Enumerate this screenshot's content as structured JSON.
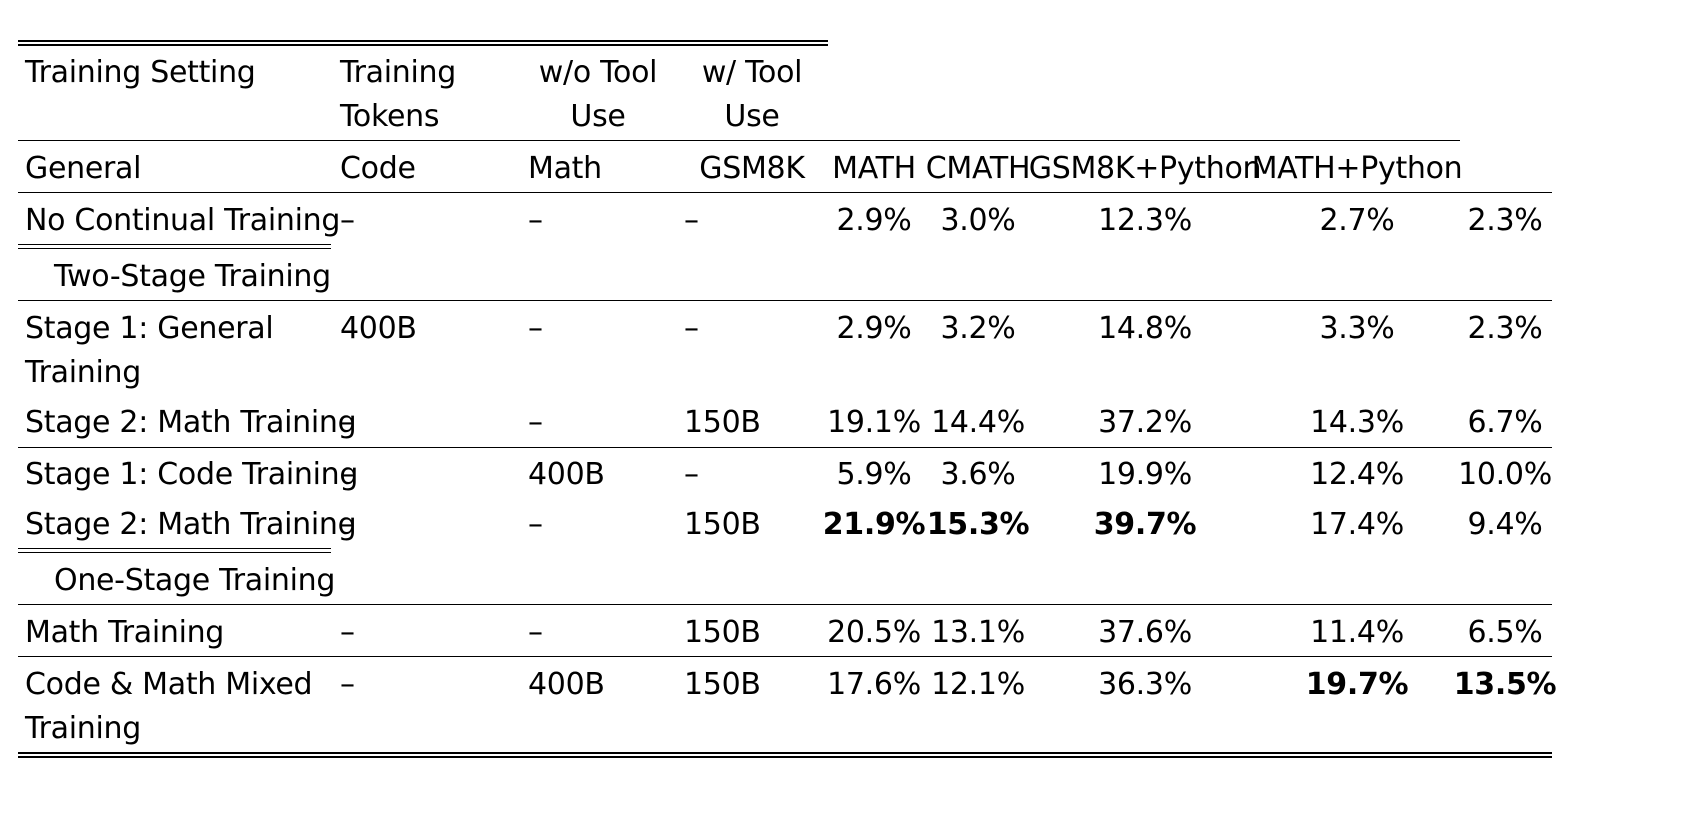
{
  "header": {
    "training_setting": "Training Setting",
    "training_tokens_line1": "Training",
    "training_tokens_line2": "Tokens",
    "wo_tool_line1": "w/o Tool",
    "wo_tool_line2": "Use",
    "w_tool_line1": "w/ Tool",
    "w_tool_line2": "Use",
    "general": "General",
    "code": "Code",
    "math": "Math",
    "gsm8k": "GSM8K",
    "math_bench": "MATH",
    "cmath": "CMATH",
    "gsm8k_python": "GSM8K+Python",
    "math_python": "MATH+Python"
  },
  "sections": {
    "two_stage": "Two-Stage Training",
    "one_stage": "One-Stage Training"
  },
  "rows": [
    {
      "setting": [
        "No Continual Training"
      ],
      "general": "–",
      "code": "–",
      "math": "–",
      "gsm8k": "2.9%",
      "math_bench": "3.0%",
      "cmath": "12.3%",
      "gsm8k_python": "2.7%",
      "math_python": "2.3%"
    },
    {
      "setting": [
        "Stage 1: General",
        "Training"
      ],
      "general": "400B",
      "code": "–",
      "math": "–",
      "gsm8k": "2.9%",
      "math_bench": "3.2%",
      "cmath": "14.8%",
      "gsm8k_python": "3.3%",
      "math_python": "2.3%"
    },
    {
      "setting": [
        "Stage 2: Math Training"
      ],
      "general": "–",
      "code": "–",
      "math": "150B",
      "gsm8k": "19.1%",
      "math_bench": "14.4%",
      "cmath": "37.2%",
      "gsm8k_python": "14.3%",
      "math_python": "6.7%"
    },
    {
      "setting": [
        "Stage 1: Code Training"
      ],
      "general": "–",
      "code": "400B",
      "math": "–",
      "gsm8k": "5.9%",
      "math_bench": "3.6%",
      "cmath": "19.9%",
      "gsm8k_python": "12.4%",
      "math_python": "10.0%"
    },
    {
      "setting": [
        "Stage 2: Math Training"
      ],
      "general": "–",
      "code": "–",
      "math": "150B",
      "gsm8k": "21.9%",
      "math_bench": "15.3%",
      "cmath": "39.7%",
      "gsm8k_python": "17.4%",
      "math_python": "9.4%"
    },
    {
      "setting": [
        "Math Training"
      ],
      "general": "–",
      "code": "–",
      "math": "150B",
      "gsm8k": "20.5%",
      "math_bench": "13.1%",
      "cmath": "37.6%",
      "gsm8k_python": "11.4%",
      "math_python": "6.5%"
    },
    {
      "setting": [
        "Code & Math Mixed",
        "Training"
      ],
      "general": "–",
      "code": "400B",
      "math": "150B",
      "gsm8k": "17.6%",
      "math_bench": "12.1%",
      "cmath": "36.3%",
      "gsm8k_python": "19.7%",
      "math_python": "13.5%"
    }
  ]
}
